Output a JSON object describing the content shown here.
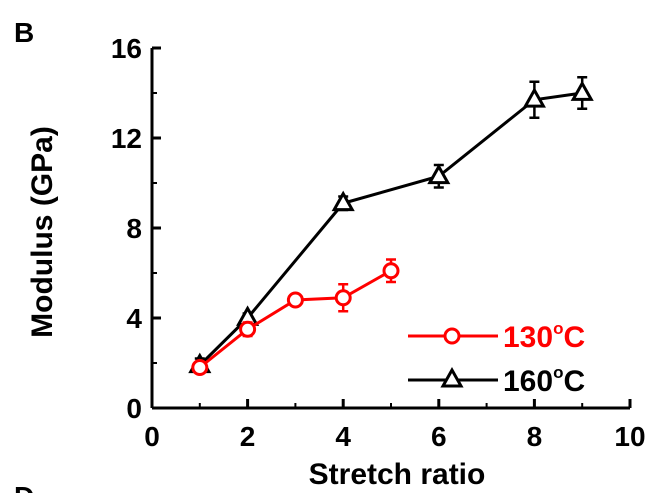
{
  "panel_label": "B",
  "next_panel_label": "D",
  "chart_data": {
    "type": "line",
    "xlabel": "Stretch ratio",
    "ylabel": "Modulus (GPa)",
    "xlim": [
      0,
      10
    ],
    "ylim": [
      0,
      16
    ],
    "xticks": [
      "0",
      "2",
      "4",
      "6",
      "8",
      "10"
    ],
    "yticks": [
      "0",
      "4",
      "8",
      "12",
      "16"
    ],
    "grid": false,
    "legend_position": "bottom-right",
    "series": [
      {
        "name": "130°C",
        "legend_main": "130",
        "legend_sup": "o",
        "legend_suffix": "C",
        "color": "#ff0000",
        "marker": "circle",
        "x": [
          1,
          2,
          3,
          4,
          5
        ],
        "y": [
          1.8,
          3.5,
          4.8,
          4.9,
          6.1
        ],
        "err": [
          0.2,
          0.3,
          0.2,
          0.6,
          0.5
        ]
      },
      {
        "name": "160°C",
        "legend_main": "160",
        "legend_sup": "o",
        "legend_suffix": "C",
        "color": "#000000",
        "marker": "triangle",
        "x": [
          1,
          2,
          4,
          6,
          8,
          9
        ],
        "y": [
          1.9,
          4.0,
          9.1,
          10.3,
          13.7,
          14.0
        ],
        "err": [
          0.3,
          0.2,
          0.3,
          0.5,
          0.8,
          0.7
        ]
      }
    ]
  }
}
